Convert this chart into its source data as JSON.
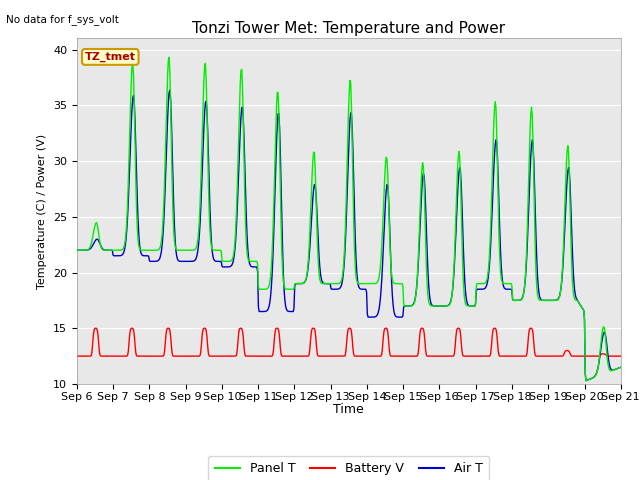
{
  "title": "Tonzi Tower Met: Temperature and Power",
  "no_data_text": "No data for f_sys_volt",
  "tz_label": "TZ_tmet",
  "ylabel": "Temperature (C) / Power (V)",
  "xlabel": "Time",
  "ylim": [
    10,
    41
  ],
  "yticks": [
    10,
    15,
    20,
    25,
    30,
    35,
    40
  ],
  "x_tick_labels": [
    "Sep 6",
    "Sep 7",
    "Sep 8",
    "Sep 9",
    "Sep 10",
    "Sep 11",
    "Sep 12",
    "Sep 13",
    "Sep 14",
    "Sep 15",
    "Sep 16",
    "Sep 17",
    "Sep 18",
    "Sep 19",
    "Sep 20",
    "Sep 21"
  ],
  "panel_color": "#00EE00",
  "battery_color": "#FF0000",
  "air_color": "#0000CC",
  "bg_color": "#E8E8E8",
  "fig_bg": "#FFFFFF",
  "legend_labels": [
    "Panel T",
    "Battery V",
    "Air T"
  ],
  "figsize": [
    6.4,
    4.8
  ],
  "dpi": 100
}
